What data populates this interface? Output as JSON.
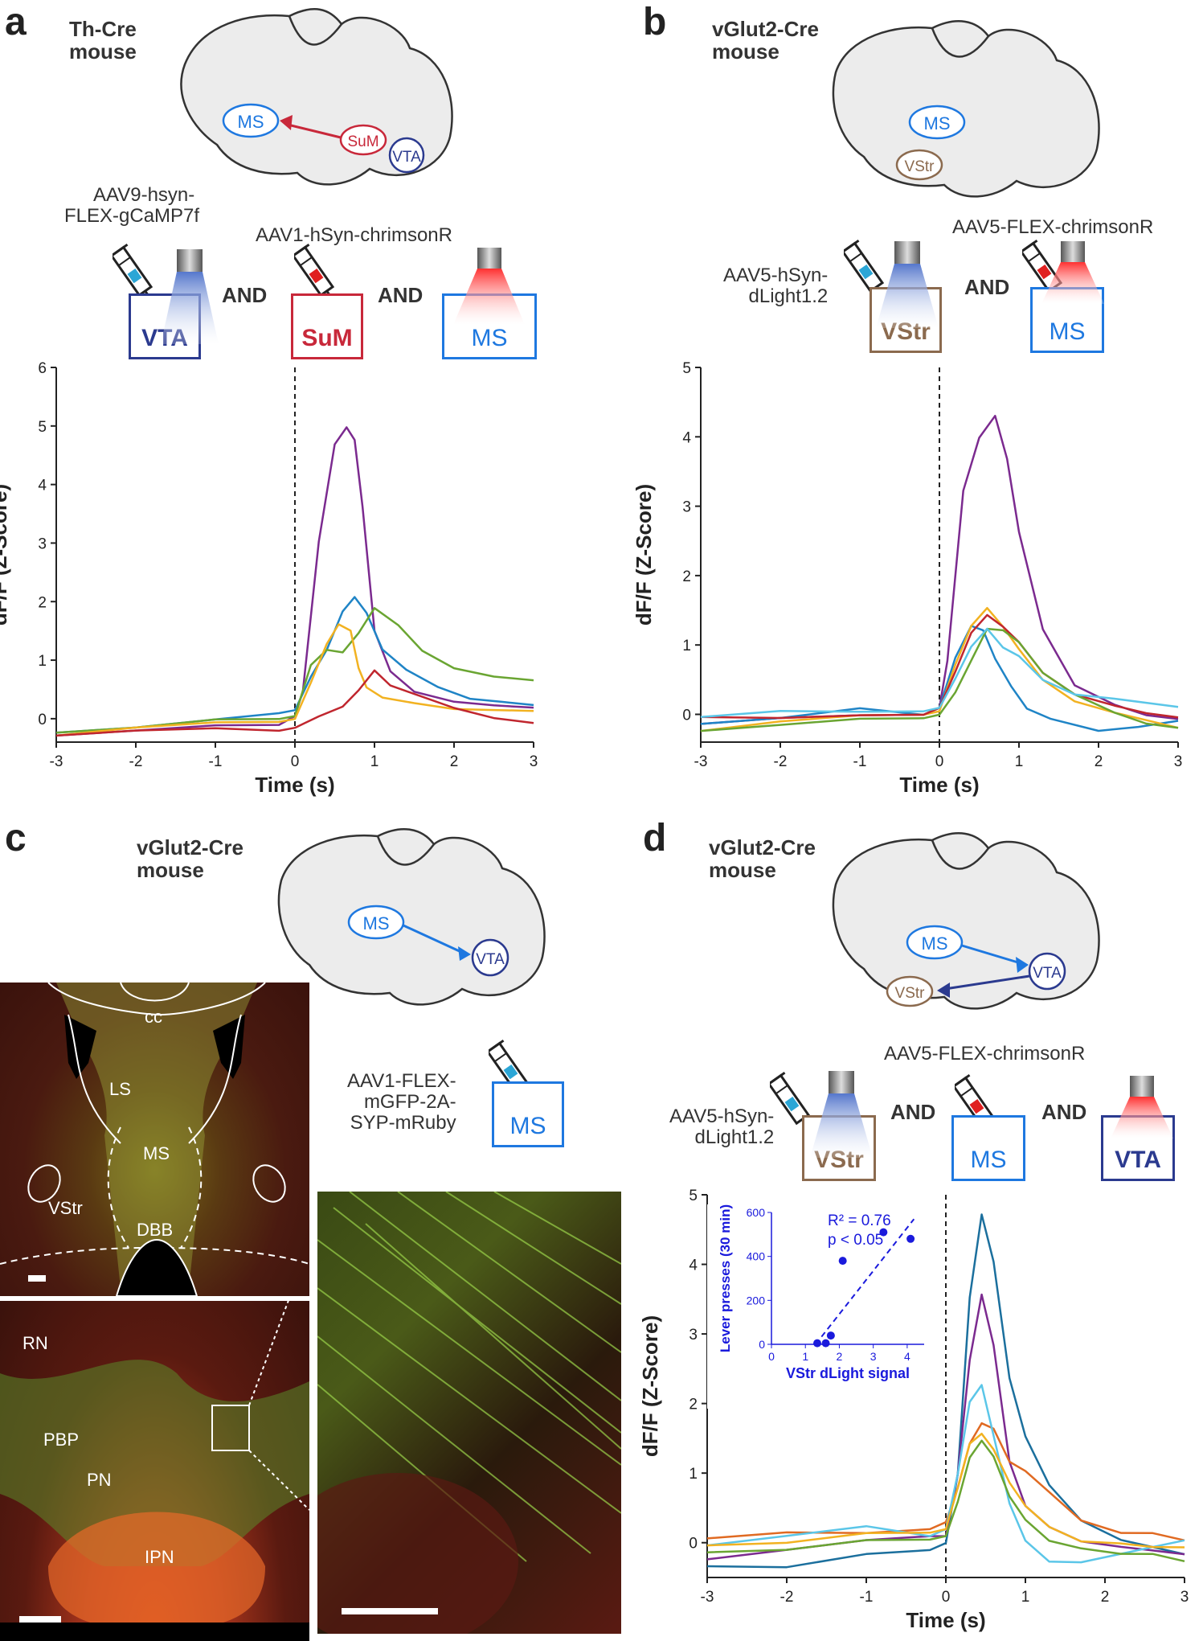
{
  "panels": {
    "a": {
      "letter": "a",
      "mouse": [
        "Th-Cre",
        "mouse"
      ],
      "brain_regions": {
        "ms": "MS",
        "sum": "SuM",
        "vta": "VTA"
      },
      "virus1": [
        "AAV9-hsyn-",
        "FLEX-gCaMP7f"
      ],
      "virus2": "AAV1-hSyn-chrimsonR",
      "and": "AND",
      "boxes": [
        "VTA",
        "SuM",
        "MS"
      ]
    },
    "b": {
      "letter": "b",
      "mouse": [
        "vGlut2-Cre",
        "mouse"
      ],
      "brain_regions": {
        "ms": "MS",
        "vstr": "VStr"
      },
      "virus1": [
        "AAV5-hSyn-",
        "dLight1.2"
      ],
      "virus2": "AAV5-FLEX-chrimsonR",
      "and": "AND",
      "boxes": [
        "VStr",
        "MS"
      ]
    },
    "c": {
      "letter": "c",
      "mouse": [
        "vGlut2-Cre",
        "mouse"
      ],
      "brain_regions": {
        "ms": "MS",
        "vta": "VTA"
      },
      "virus": [
        "AAV1-FLEX-",
        "mGFP-2A-",
        "SYP-mRuby"
      ],
      "box": "MS",
      "micro_top_labels": {
        "cc": "cc",
        "ls": "LS",
        "ms": "MS",
        "vstr": "VStr",
        "dbb": "DBB"
      },
      "micro_bottom_labels": {
        "rn": "RN",
        "pbp": "PBP",
        "pn": "PN",
        "ipn": "IPN"
      }
    },
    "d": {
      "letter": "d",
      "mouse": [
        "vGlut2-Cre",
        "mouse"
      ],
      "brain_regions": {
        "ms": "MS",
        "vta": "VTA",
        "vstr": "VStr"
      },
      "virus1": [
        "AAV5-hSyn-",
        "dLight1.2"
      ],
      "virus2": "AAV5-FLEX-chrimsonR",
      "and": "AND",
      "boxes": [
        "VStr",
        "MS",
        "VTA"
      ]
    }
  },
  "colors": {
    "purple": "#7b2a8f",
    "blue": "#1f84c6",
    "green": "#6aa532",
    "yellow": "#f2b221",
    "red": "#c0262e",
    "orange": "#e06a22",
    "lightblue": "#5bc6e8",
    "teal": "#1b6f9d",
    "ms_blue": "#1e78e0",
    "vta_navy": "#2b3a8f",
    "sum_red": "#c8283a",
    "vstr_brown": "#8b6a4e",
    "inset_blue": "#1a1adc"
  },
  "chart_data": [
    {
      "id": "a",
      "type": "line",
      "xlabel": "Time (s)",
      "ylabel": "dF/F (Z-Score)",
      "xlim": [
        -3,
        3
      ],
      "ylim": [
        -0.4,
        6
      ],
      "xticks": [
        -3,
        -2,
        -1,
        0,
        1,
        2,
        3
      ],
      "yticks": [
        0,
        1,
        2,
        3,
        4,
        5,
        6
      ],
      "event_line_x": 0,
      "series": [
        {
          "name": "purple",
          "color": "#7b2a8f",
          "x": [
            -3,
            -2,
            -1,
            -0.2,
            0,
            0.1,
            0.3,
            0.5,
            0.65,
            0.75,
            0.85,
            1.0,
            1.2,
            1.5,
            2,
            2.5,
            3
          ],
          "y": [
            -0.25,
            -0.2,
            -0.15,
            -0.1,
            0.05,
            0.5,
            3.0,
            4.7,
            4.95,
            4.8,
            3.6,
            1.5,
            0.8,
            0.5,
            0.3,
            0.2,
            0.15
          ]
        },
        {
          "name": "blue",
          "color": "#1f84c6",
          "x": [
            -3,
            -2,
            -1,
            -0.2,
            0,
            0.2,
            0.4,
            0.6,
            0.75,
            0.9,
            1.1,
            1.4,
            1.8,
            2.2,
            2.6,
            3
          ],
          "y": [
            -0.2,
            -0.15,
            -0.05,
            0.1,
            0.15,
            0.7,
            1.2,
            1.8,
            2.1,
            1.8,
            1.2,
            0.8,
            0.5,
            0.3,
            0.25,
            0.2
          ]
        },
        {
          "name": "green",
          "color": "#6aa532",
          "x": [
            -3,
            -2,
            -1,
            -0.2,
            0,
            0.2,
            0.4,
            0.6,
            0.8,
            1.0,
            1.3,
            1.6,
            2.0,
            2.5,
            3
          ],
          "y": [
            -0.2,
            -0.15,
            -0.05,
            0.0,
            0.05,
            0.9,
            1.2,
            1.1,
            1.5,
            1.85,
            1.6,
            1.2,
            0.9,
            0.75,
            0.65
          ]
        },
        {
          "name": "yellow",
          "color": "#f2b221",
          "x": [
            -3,
            -2,
            -1,
            -0.2,
            0,
            0.2,
            0.4,
            0.55,
            0.7,
            0.8,
            0.9,
            1.1,
            1.5,
            2,
            2.5,
            3
          ],
          "y": [
            -0.25,
            -0.15,
            -0.1,
            -0.05,
            0.0,
            0.6,
            1.3,
            1.6,
            1.5,
            0.9,
            0.5,
            0.4,
            0.3,
            0.2,
            0.15,
            0.1
          ]
        },
        {
          "name": "red",
          "color": "#c0262e",
          "x": [
            -3,
            -2,
            -1,
            -0.2,
            0,
            0.3,
            0.6,
            0.8,
            1.0,
            1.2,
            1.5,
            2,
            2.5,
            3
          ],
          "y": [
            -0.25,
            -0.2,
            -0.2,
            -0.2,
            -0.15,
            0.0,
            0.2,
            0.5,
            0.8,
            0.6,
            0.4,
            0.2,
            0.05,
            -0.05
          ]
        }
      ]
    },
    {
      "id": "b",
      "type": "line",
      "xlabel": "Time (s)",
      "ylabel": "dF/F (Z-Score)",
      "xlim": [
        -3,
        3
      ],
      "ylim": [
        -0.4,
        5
      ],
      "xticks": [
        -3,
        -2,
        -1,
        0,
        1,
        2,
        3
      ],
      "yticks": [
        0,
        1,
        2,
        3,
        4,
        5
      ],
      "event_line_x": 0,
      "series": [
        {
          "name": "purple",
          "color": "#7b2a8f",
          "x": [
            -3,
            -2,
            -1,
            -0.2,
            0,
            0.1,
            0.3,
            0.5,
            0.7,
            0.85,
            1.0,
            1.3,
            1.7,
            2.2,
            2.6,
            3
          ],
          "y": [
            -0.1,
            -0.05,
            -0.05,
            0.0,
            0.1,
            0.8,
            3.2,
            4.0,
            4.3,
            3.7,
            2.6,
            1.2,
            0.4,
            0.1,
            -0.05,
            -0.1
          ]
        },
        {
          "name": "blue",
          "color": "#1f84c6",
          "x": [
            -3,
            -2,
            -1,
            -0.2,
            0,
            0.2,
            0.4,
            0.55,
            0.7,
            0.9,
            1.1,
            1.4,
            2,
            2.5,
            3
          ],
          "y": [
            -0.1,
            -0.05,
            0.05,
            0.0,
            0.1,
            0.8,
            1.3,
            1.2,
            0.8,
            0.4,
            0.1,
            -0.1,
            -0.2,
            -0.15,
            -0.1
          ]
        },
        {
          "name": "yellow",
          "color": "#f2b221",
          "x": [
            -3,
            -2,
            -1,
            -0.2,
            0,
            0.2,
            0.4,
            0.6,
            0.8,
            1.0,
            1.3,
            1.7,
            2.2,
            2.6,
            3
          ],
          "y": [
            -0.2,
            -0.1,
            -0.05,
            0.0,
            0.05,
            0.7,
            1.3,
            1.5,
            1.3,
            0.9,
            0.5,
            0.2,
            0.0,
            -0.1,
            -0.2
          ]
        },
        {
          "name": "red",
          "color": "#c0262e",
          "x": [
            -3,
            -2,
            -1,
            -0.2,
            0,
            0.2,
            0.4,
            0.6,
            0.8,
            1.0,
            1.3,
            1.7,
            2.2,
            2.6,
            3
          ],
          "y": [
            0.0,
            -0.05,
            -0.05,
            0.0,
            0.1,
            0.6,
            1.2,
            1.4,
            1.3,
            1.0,
            0.6,
            0.3,
            0.1,
            0.0,
            -0.05
          ]
        },
        {
          "name": "green",
          "color": "#6aa532",
          "x": [
            -3,
            -2,
            -1,
            -0.2,
            0,
            0.2,
            0.4,
            0.6,
            0.8,
            1.0,
            1.3,
            1.7,
            2.2,
            2.6,
            3
          ],
          "y": [
            -0.2,
            -0.15,
            -0.1,
            -0.05,
            0.0,
            0.3,
            0.8,
            1.2,
            1.25,
            1.0,
            0.6,
            0.3,
            0.0,
            -0.15,
            -0.2
          ]
        },
        {
          "name": "lightblue",
          "color": "#5bc6e8",
          "x": [
            -3,
            -2,
            -1,
            -0.2,
            0,
            0.2,
            0.4,
            0.6,
            0.8,
            1.0,
            1.3,
            1.7,
            2.2,
            2.6,
            3
          ],
          "y": [
            0.0,
            0.05,
            0.0,
            0.05,
            0.1,
            0.5,
            1.0,
            1.2,
            1.0,
            0.8,
            0.5,
            0.3,
            0.2,
            0.15,
            0.1
          ]
        }
      ]
    },
    {
      "id": "d",
      "type": "line",
      "xlabel": "Time (s)",
      "ylabel": "dF/F (Z-Score)",
      "xlim": [
        -3,
        3
      ],
      "ylim": [
        -0.5,
        5
      ],
      "xticks": [
        -3,
        -2,
        -1,
        0,
        1,
        2,
        3
      ],
      "yticks": [
        0,
        1,
        2,
        3,
        4,
        5
      ],
      "event_line_x": 0,
      "series": [
        {
          "name": "teal",
          "color": "#1b6f9d",
          "x": [
            -3,
            -2,
            -1,
            -0.2,
            0,
            0.15,
            0.3,
            0.45,
            0.6,
            0.8,
            1.0,
            1.3,
            1.7,
            2.2,
            2.6,
            3
          ],
          "y": [
            -0.3,
            -0.35,
            -0.2,
            -0.1,
            0.0,
            1.0,
            3.5,
            4.75,
            4.0,
            2.4,
            1.5,
            0.8,
            0.3,
            0.0,
            -0.1,
            -0.2
          ]
        },
        {
          "name": "purple",
          "color": "#7b2a8f",
          "x": [
            -3,
            -2,
            -1,
            -0.2,
            0,
            0.15,
            0.3,
            0.45,
            0.6,
            0.8,
            1.0,
            1.3,
            1.7,
            2.2,
            2.6,
            3
          ],
          "y": [
            -0.2,
            -0.1,
            0.0,
            0.1,
            0.1,
            1.0,
            2.6,
            3.6,
            2.8,
            1.2,
            0.5,
            0.2,
            0.0,
            -0.1,
            -0.15,
            -0.2
          ]
        },
        {
          "name": "orange",
          "color": "#e06a22",
          "x": [
            -3,
            -2,
            -1,
            -0.2,
            0,
            0.15,
            0.3,
            0.45,
            0.6,
            0.8,
            1.0,
            1.3,
            1.7,
            2.2,
            2.6,
            3
          ],
          "y": [
            0.1,
            0.15,
            0.1,
            0.2,
            0.3,
            0.8,
            1.4,
            1.75,
            1.6,
            1.2,
            1.0,
            0.7,
            0.3,
            0.1,
            0.1,
            0.0
          ]
        },
        {
          "name": "lightblue",
          "color": "#5bc6e8",
          "x": [
            -3,
            -2,
            -1,
            -0.2,
            0,
            0.15,
            0.3,
            0.45,
            0.6,
            0.8,
            1.0,
            1.3,
            1.7,
            2.2,
            2.6,
            3
          ],
          "y": [
            0.0,
            0.1,
            0.2,
            0.1,
            0.2,
            1.0,
            2.0,
            2.3,
            1.5,
            0.6,
            0.0,
            -0.3,
            -0.3,
            -0.2,
            -0.1,
            0.0
          ]
        },
        {
          "name": "green",
          "color": "#6aa532",
          "x": [
            -3,
            -2,
            -1,
            -0.2,
            0,
            0.15,
            0.3,
            0.45,
            0.6,
            0.8,
            1.0,
            1.3,
            1.7,
            2.2,
            2.6,
            3
          ],
          "y": [
            -0.1,
            -0.1,
            0.0,
            0.05,
            0.1,
            0.6,
            1.2,
            1.5,
            1.2,
            0.7,
            0.3,
            0.0,
            -0.1,
            -0.2,
            -0.2,
            -0.3
          ]
        },
        {
          "name": "yellow",
          "color": "#f2b221",
          "x": [
            -3,
            -2,
            -1,
            -0.2,
            0,
            0.15,
            0.3,
            0.45,
            0.6,
            0.8,
            1.0,
            1.3,
            1.7,
            2.2,
            2.6,
            3
          ],
          "y": [
            0.0,
            0.0,
            0.1,
            0.15,
            0.2,
            0.8,
            1.4,
            1.6,
            1.3,
            0.9,
            0.5,
            0.2,
            0.0,
            -0.05,
            -0.1,
            -0.1
          ]
        }
      ],
      "inset": {
        "type": "scatter",
        "xlabel": "VStr dLight signal",
        "ylabel": "Lever presses (30 min)",
        "xlim": [
          0,
          4.5
        ],
        "ylim": [
          0,
          600
        ],
        "xticks": [
          0,
          1,
          2,
          3,
          4
        ],
        "yticks": [
          0,
          200,
          400,
          600
        ],
        "r2_text": "R² = 0.76",
        "p_text": "p < 0.05",
        "points": [
          {
            "x": 1.35,
            "y": 5
          },
          {
            "x": 1.6,
            "y": 5
          },
          {
            "x": 1.75,
            "y": 40
          },
          {
            "x": 2.1,
            "y": 380
          },
          {
            "x": 3.3,
            "y": 510
          },
          {
            "x": 4.1,
            "y": 480
          }
        ],
        "fit": {
          "x": [
            1.3,
            4.2
          ],
          "y": [
            0,
            570
          ]
        }
      }
    }
  ]
}
